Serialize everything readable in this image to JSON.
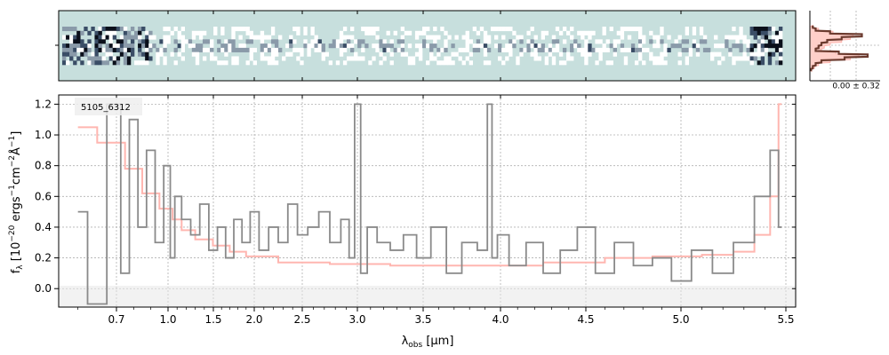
{
  "figure": {
    "object_label": "5105_6312",
    "xlabel_main": "λ",
    "xlabel_sub": "obs",
    "xlabel_unit": " [μm]",
    "ylabel": "f_λ [10^-20 ergs^-1cm^-2Å^-1]",
    "profile_label": "0.00 ± 0.32"
  },
  "colors": {
    "spectrum": "#8a8a8a",
    "model": "#ffb6b0",
    "profile_line": "#6b3a2e",
    "profile_fill": "#ffcfc9",
    "twod_bg": "#c7dfdd",
    "grid": "#b0b0b0"
  },
  "chart_data": [
    {
      "type": "line",
      "title": "",
      "xlabel": "λobs [μm]",
      "ylabel": "fλ [10^-20 ergs^-1cm^-2Å^-1]",
      "xscale": "nonlinear (wavelength ticks)",
      "xlim": [
        0.55,
        5.52
      ],
      "ylim": [
        -0.12,
        1.26
      ],
      "xticks": [
        "0.7",
        "1.0",
        "1.5",
        "2.0",
        "2.5",
        "3.0",
        "3.5",
        "4.0",
        "4.5",
        "5.0",
        "5.5"
      ],
      "yticks": [
        "0.0",
        "0.2",
        "0.4",
        "0.6",
        "0.8",
        "1.0",
        "1.2"
      ],
      "grid": true,
      "annotation": "5105_6312",
      "series": [
        {
          "style": "steps",
          "x": [
            0.6,
            0.65,
            0.7,
            0.75,
            0.8,
            0.85,
            0.9,
            0.95,
            1.0,
            1.05,
            1.1,
            1.2,
            1.3,
            1.4,
            1.5,
            1.6,
            1.7,
            1.8,
            1.9,
            2.0,
            2.1,
            2.2,
            2.3,
            2.4,
            2.5,
            2.6,
            2.7,
            2.8,
            2.9,
            2.95,
            3.0,
            3.05,
            3.1,
            3.2,
            3.3,
            3.4,
            3.5,
            3.6,
            3.7,
            3.8,
            3.9,
            3.93,
            3.96,
            4.0,
            4.1,
            4.2,
            4.3,
            4.4,
            4.5,
            4.6,
            4.7,
            4.8,
            4.9,
            5.0,
            5.1,
            5.2,
            5.3,
            5.4,
            5.45,
            5.48
          ],
          "y": [
            0.5,
            -0.1,
            1.2,
            0.1,
            1.1,
            0.4,
            0.9,
            0.3,
            0.8,
            0.2,
            0.6,
            0.45,
            0.35,
            0.55,
            0.25,
            0.4,
            0.2,
            0.45,
            0.3,
            0.5,
            0.25,
            0.4,
            0.3,
            0.55,
            0.35,
            0.4,
            0.5,
            0.3,
            0.45,
            0.2,
            1.2,
            0.1,
            0.4,
            0.3,
            0.25,
            0.35,
            0.2,
            0.4,
            0.1,
            0.3,
            0.25,
            1.2,
            0.2,
            0.35,
            0.15,
            0.3,
            0.1,
            0.25,
            0.4,
            0.1,
            0.3,
            0.15,
            0.2,
            0.05,
            0.25,
            0.1,
            0.3,
            0.6,
            0.9,
            0.4
          ]
        },
        {
          "style": "steps",
          "x": [
            0.6,
            0.7,
            0.8,
            0.9,
            1.0,
            1.1,
            1.2,
            1.4,
            1.6,
            1.8,
            2.0,
            2.5,
            3.0,
            3.5,
            4.0,
            4.5,
            4.7,
            5.0,
            5.2,
            5.3,
            5.4,
            5.45,
            5.48
          ],
          "y": [
            1.05,
            0.95,
            0.78,
            0.62,
            0.52,
            0.45,
            0.38,
            0.32,
            0.28,
            0.24,
            0.21,
            0.17,
            0.16,
            0.15,
            0.15,
            0.17,
            0.2,
            0.21,
            0.22,
            0.24,
            0.35,
            0.6,
            1.2
          ]
        }
      ]
    },
    {
      "type": "heatmap",
      "description_visible": "2D spectrum strip",
      "rows": 3
    },
    {
      "type": "line",
      "annotation": "0.00 ± 0.32",
      "series": [
        {
          "style": "steps",
          "y": [
            0,
            1,
            2,
            3,
            4,
            5,
            6,
            7,
            8,
            9,
            10,
            11,
            12,
            13,
            14,
            15
          ],
          "x": [
            0.05,
            0.1,
            0.35,
            0.9,
            0.55,
            0.3,
            0.2,
            0.15,
            0.1,
            0.5,
            1.0,
            0.6,
            0.2,
            0.1,
            0.05,
            0.02
          ]
        },
        {
          "style": "filled",
          "y": [
            0,
            1,
            2,
            3,
            4,
            5,
            6,
            7,
            8,
            9,
            10,
            11,
            12,
            13,
            14,
            15
          ],
          "x": [
            0.05,
            0.15,
            0.4,
            0.75,
            0.7,
            0.55,
            0.35,
            0.25,
            0.2,
            0.45,
            0.85,
            0.7,
            0.35,
            0.15,
            0.08,
            0.03
          ]
        }
      ]
    }
  ]
}
